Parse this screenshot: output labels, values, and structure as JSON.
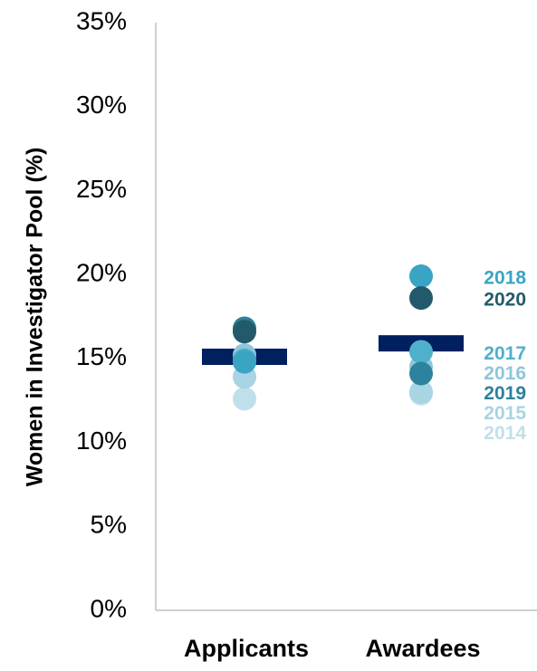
{
  "chart_data": {
    "type": "dot",
    "y_label": "Women in Investigator Pool (%)",
    "categories": [
      "Applicants",
      "Awardees"
    ],
    "series": [
      {
        "name": "2014",
        "color": "#bfe0ea",
        "values": [
          12.6,
          12.9
        ]
      },
      {
        "name": "2015",
        "color": "#a8d4e3",
        "values": [
          13.9,
          13.0
        ]
      },
      {
        "name": "2016",
        "color": "#8ec7db",
        "values": [
          15.2,
          14.5
        ]
      },
      {
        "name": "2017",
        "color": "#4fb0cb",
        "values": [
          14.9,
          15.4
        ]
      },
      {
        "name": "2018",
        "color": "#3aa4c5",
        "values": [
          14.8,
          19.9
        ]
      },
      {
        "name": "2019",
        "color": "#2d829d",
        "values": [
          16.8,
          14.1
        ]
      },
      {
        "name": "2020",
        "color": "#235a6b",
        "values": [
          16.6,
          18.6
        ]
      }
    ],
    "mean_values": [
      15.1,
      15.9
    ],
    "mean_color": "#002060",
    "ylim": [
      0,
      35
    ],
    "yticks": [
      {
        "value": 0,
        "label": "0%"
      },
      {
        "value": 5,
        "label": "5%"
      },
      {
        "value": 10,
        "label": "10%"
      },
      {
        "value": 15,
        "label": "15%"
      },
      {
        "value": 20,
        "label": "20%"
      },
      {
        "value": 25,
        "label": "25%"
      },
      {
        "value": 30,
        "label": "30%"
      },
      {
        "value": 35,
        "label": "35%"
      }
    ]
  }
}
